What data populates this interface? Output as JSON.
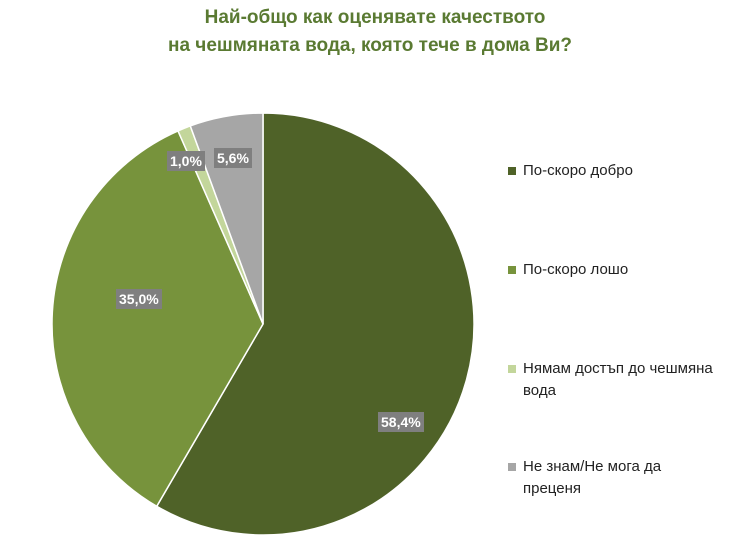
{
  "title": {
    "line1": "Най-общо как оценявате качеството",
    "line2": "на чешмяната вода, която тече в дома Ви?"
  },
  "legend": [
    {
      "label": "По-скоро добро",
      "color": "#4f6228"
    },
    {
      "label": "По-скоро лошо",
      "color": "#77933c"
    },
    {
      "label": "Нямам достъп до чешмяна вода",
      "color": "#c3d69b"
    },
    {
      "label": "Не знам/Не мога да преценя",
      "color": "#a6a6a6"
    }
  ],
  "labels": [
    "58,4%",
    "35,0%",
    "1,0%",
    "5,6%"
  ],
  "chart_data": {
    "type": "pie",
    "title": "Най-общо как оценявате качеството на чешмяната вода, която тече в дома Ви?",
    "categories": [
      "По-скоро добро",
      "По-скоро лошо",
      "Нямам достъп до чешмяна вода",
      "Не знам/Не мога да преценя"
    ],
    "values": [
      58.4,
      35.0,
      1.0,
      5.6
    ],
    "unit": "%",
    "colors": [
      "#4f6228",
      "#77933c",
      "#c3d69b",
      "#a6a6a6"
    ],
    "start_angle": "12 o'clock, clockwise",
    "legend_position": "right",
    "data_labels": [
      "58,4%",
      "35,0%",
      "1,0%",
      "5,6%"
    ]
  }
}
